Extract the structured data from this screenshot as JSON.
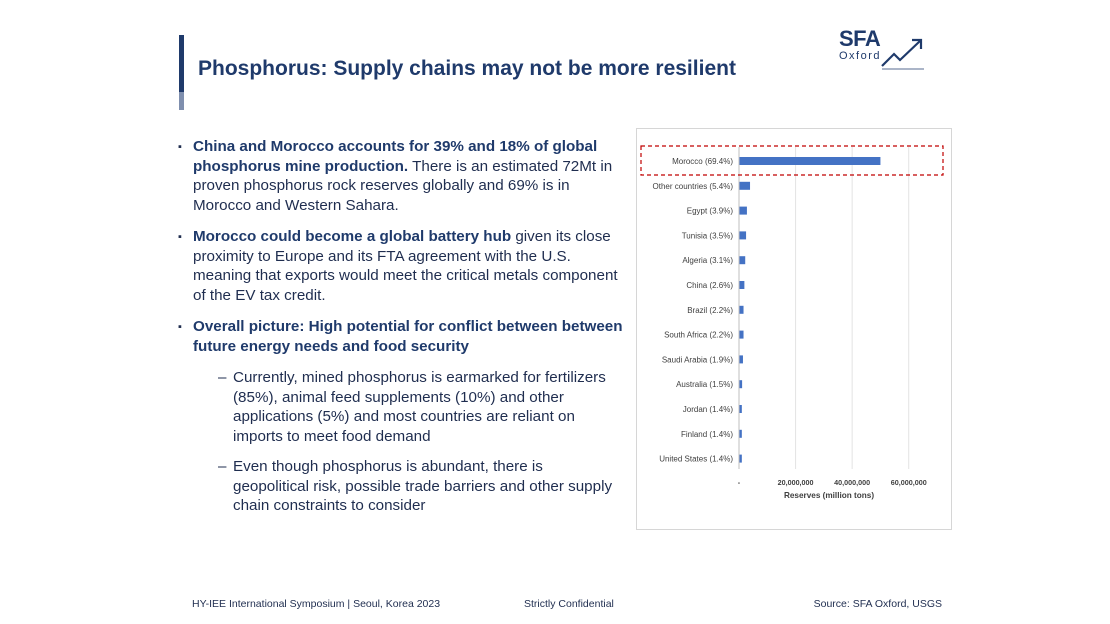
{
  "slide": {
    "title": "Phosphorus: Supply chains may not be more resilient"
  },
  "logo": {
    "main": "SFA",
    "sub": "Oxford"
  },
  "bullets": [
    {
      "bold": "China and Morocco accounts for 39% and 18% of global phosphorus mine production.",
      "text": " There is an estimated 72Mt in proven phosphorus rock reserves globally and 69% is in Morocco and Western Sahara."
    },
    {
      "bold": "Morocco could become a global battery hub",
      "text": " given its close proximity to Europe and its FTA agreement with the U.S. meaning that exports would meet the critical metals component of the EV tax credit."
    },
    {
      "bold": "Overall picture: High potential for conflict between between future energy needs and food security",
      "text": ""
    }
  ],
  "sub_bullets": [
    "Currently, mined phosphorus is earmarked for fertilizers (85%), animal feed supplements (10%) and other applications (5%) and most countries are reliant on imports to meet food demand",
    "Even though phosphorus is abundant, there is geopolitical risk, possible trade barriers and other supply chain constraints to consider"
  ],
  "colors": {
    "bar": "#4472c4",
    "highlight": "#c00000",
    "title": "#1f3a6b"
  },
  "chart_data": {
    "type": "bar",
    "orientation": "horizontal",
    "categories": [
      "Morocco (69.4%)",
      "Other countries (5.4%)",
      "Egypt (3.9%)",
      "Tunisia (3.5%)",
      "Algeria (3.1%)",
      "China (2.6%)",
      "Brazil (2.2%)",
      "South Africa (2.2%)",
      "Saudi Arabia (1.9%)",
      "Australia (1.5%)",
      "Jordan (1.4%)",
      "Finland  (1.4%)",
      "United States (1.4%)"
    ],
    "values": [
      50000000,
      3900000,
      2800000,
      2500000,
      2200000,
      1900000,
      1600000,
      1600000,
      1400000,
      1100000,
      1000000,
      1000000,
      1000000
    ],
    "xlim": [
      0,
      70000000
    ],
    "xticks": [
      0,
      20000000,
      40000000,
      60000000
    ],
    "xtick_labels": [
      "-",
      "20,000,000",
      "40,000,000",
      "60,000,000"
    ],
    "xlabel": "Reserves (million tons)",
    "highlighted_category": "Morocco (69.4%)"
  },
  "footer": {
    "left": "HY-IEE International Symposium | Seoul, Korea 2023",
    "center": "Strictly Confidential",
    "right": "Source: SFA Oxford, USGS"
  }
}
